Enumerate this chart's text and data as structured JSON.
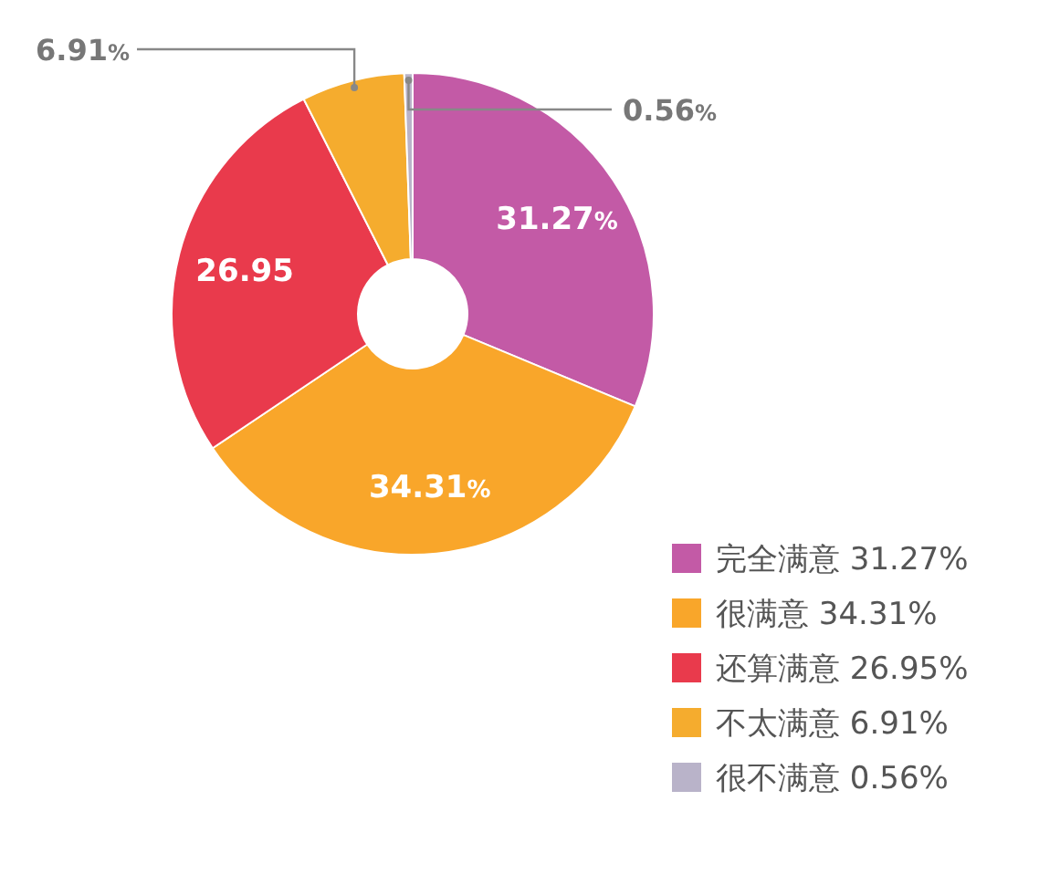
{
  "chart_data": {
    "type": "donut",
    "categories": [
      "完全满意  31.27%",
      "很满意  34.31%",
      "还算满意 26.95%",
      "不太满意  6.91%",
      "很不满意  0.56%"
    ],
    "values": [
      31.27,
      34.31,
      26.95,
      6.91,
      0.56
    ],
    "colors": [
      "#c35aa6",
      "#f9a62a",
      "#e93a4c",
      "#f5ac2e",
      "#b9b3c9"
    ],
    "value_labels": [
      "31.27%",
      "34.31%",
      "26.95",
      "6.91%",
      "0.56%"
    ],
    "legend": "bottom right"
  }
}
